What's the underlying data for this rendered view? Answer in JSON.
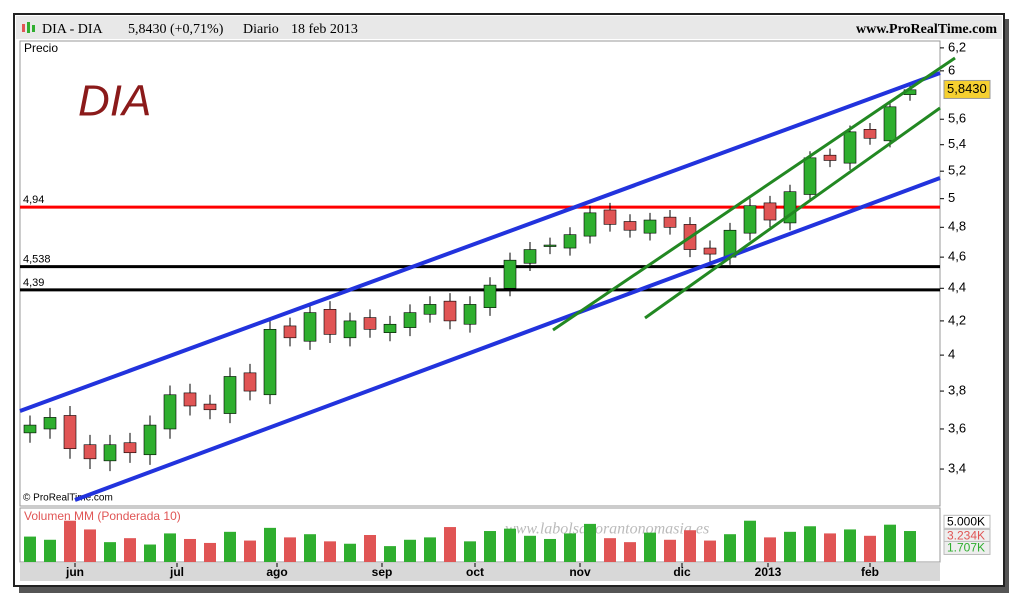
{
  "header": {
    "symbol": "DIA - DIA",
    "quote": "5,8430 (+0,71%)",
    "period": "Diario",
    "date": "18 feb 2013",
    "site": "www.ProRealTime.com"
  },
  "chart_data": {
    "type": "candlestick",
    "title": "DIA",
    "axis_label": "Precio",
    "copyright": "© ProRealTime.com",
    "watermark": "www.labolsaporantonomasia.es",
    "log_scale": true,
    "xlim": [
      0,
      46
    ],
    "xticks": [
      {
        "value": 2.75,
        "label": "jun"
      },
      {
        "value": 7.85,
        "label": "jul"
      },
      {
        "value": 12.85,
        "label": "ago"
      },
      {
        "value": 18.1,
        "label": "sep"
      },
      {
        "value": 22.75,
        "label": "oct"
      },
      {
        "value": 28,
        "label": "nov"
      },
      {
        "value": 33.1,
        "label": "dic"
      },
      {
        "value": 37.4,
        "label": "2013"
      },
      {
        "value": 42.5,
        "label": "feb"
      }
    ],
    "ylim": [
      3.23,
      6.27
    ],
    "yticks": [
      {
        "value": 3.4,
        "label": "3,4"
      },
      {
        "value": 3.6,
        "label": "3,6"
      },
      {
        "value": 3.8,
        "label": "3,8"
      },
      4,
      {
        "value": 4.2,
        "label": "4,2"
      },
      {
        "value": 4.4,
        "label": "4,4"
      },
      {
        "value": 4.6,
        "label": "4,6"
      },
      {
        "value": 4.8,
        "label": "4,8"
      },
      5,
      {
        "value": 5.2,
        "label": "5,2"
      },
      {
        "value": 5.4,
        "label": "5,4"
      },
      {
        "value": 5.6,
        "label": "5,6"
      },
      6,
      {
        "value": 6.2,
        "label": "6,2"
      }
    ],
    "up_color": "#2fae2f",
    "down_color": "#e05555",
    "open": [
      3.58,
      3.6,
      3.67,
      3.52,
      3.44,
      3.53,
      3.47,
      3.6,
      3.79,
      3.73,
      3.68,
      3.9,
      3.78,
      4.17,
      4.08,
      4.27,
      4.1,
      4.22,
      4.13,
      4.16,
      4.24,
      4.32,
      4.18,
      4.28,
      4.4,
      4.56,
      4.67,
      4.66,
      4.74,
      4.92,
      4.84,
      4.76,
      4.87,
      4.82,
      4.66,
      4.6,
      4.76,
      4.97,
      4.83,
      5.03,
      5.32,
      5.26,
      5.52,
      5.43,
      5.8
    ],
    "high": [
      3.67,
      3.71,
      3.72,
      3.57,
      3.57,
      3.58,
      3.67,
      3.83,
      3.84,
      3.78,
      3.93,
      3.95,
      4.2,
      4.22,
      4.3,
      4.32,
      4.25,
      4.27,
      4.23,
      4.3,
      4.35,
      4.37,
      4.35,
      4.47,
      4.63,
      4.7,
      4.73,
      4.8,
      4.95,
      4.97,
      4.89,
      4.9,
      4.92,
      4.87,
      4.71,
      4.83,
      5.0,
      5.02,
      5.1,
      5.35,
      5.37,
      5.55,
      5.57,
      5.75,
      5.89
    ],
    "low": [
      3.53,
      3.55,
      3.45,
      3.4,
      3.39,
      3.43,
      3.42,
      3.55,
      3.67,
      3.65,
      3.63,
      3.75,
      3.73,
      4.05,
      4.03,
      4.07,
      4.05,
      4.1,
      4.08,
      4.11,
      4.19,
      4.15,
      4.13,
      4.23,
      4.35,
      4.51,
      4.62,
      4.61,
      4.69,
      4.77,
      4.73,
      4.71,
      4.75,
      4.6,
      4.57,
      4.55,
      4.71,
      4.8,
      4.78,
      4.98,
      5.23,
      5.21,
      5.4,
      5.38,
      5.75
    ],
    "close": [
      3.62,
      3.66,
      3.5,
      3.45,
      3.52,
      3.48,
      3.62,
      3.78,
      3.72,
      3.7,
      3.88,
      3.8,
      4.15,
      4.1,
      4.25,
      4.12,
      4.2,
      4.15,
      4.18,
      4.25,
      4.3,
      4.2,
      4.3,
      4.42,
      4.58,
      4.65,
      4.68,
      4.75,
      4.9,
      4.82,
      4.78,
      4.85,
      4.8,
      4.65,
      4.62,
      4.78,
      4.95,
      4.85,
      5.05,
      5.3,
      5.28,
      5.5,
      5.45,
      5.7,
      5.84
    ],
    "levels": [
      {
        "value": 4.94,
        "label": "4,94",
        "color": "#ff0000"
      },
      {
        "value": 4.538,
        "label": "4,538",
        "color": "#000000"
      },
      {
        "value": 4.39,
        "label": "4,39",
        "color": "#000000"
      }
    ],
    "last_price": {
      "value": 5.843,
      "label": "5,8430"
    },
    "volume": {
      "title": "Volumen MM (Ponderada 10)",
      "ylim": [
        0,
        6800
      ],
      "yticks": [
        {
          "value": 5000,
          "label": "5.000K"
        },
        {
          "value": 3234,
          "label": "3.234K"
        },
        {
          "value": 1707,
          "label": "1.707K"
        }
      ],
      "values": [
        3200,
        2800,
        5200,
        4100,
        2500,
        3000,
        2200,
        3600,
        2900,
        2400,
        3800,
        2700,
        4300,
        3100,
        3500,
        2600,
        2300,
        3400,
        2000,
        2800,
        3100,
        4400,
        2600,
        3900,
        4200,
        3300,
        2900,
        3600,
        4800,
        3000,
        2500,
        3700,
        2800,
        4000,
        2700,
        3500,
        5200,
        3100,
        3800,
        4500,
        3600,
        4100,
        3300,
        4700,
        3900
      ]
    }
  }
}
